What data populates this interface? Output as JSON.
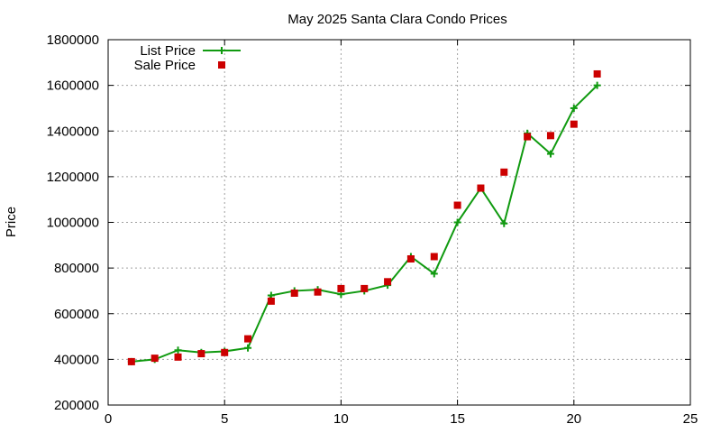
{
  "chart_data": {
    "type": "line",
    "title": "May 2025 Santa Clara Condo Prices",
    "xlabel": "",
    "ylabel": "Price",
    "xlim": [
      0,
      25
    ],
    "ylim": [
      200000,
      1800000
    ],
    "x_ticks": [
      "0",
      "5",
      "10",
      "15",
      "20",
      "25"
    ],
    "y_ticks": [
      "200000",
      "400000",
      "600000",
      "800000",
      "1000000",
      "1200000",
      "1400000",
      "1600000",
      "1800000"
    ],
    "grid": true,
    "legend_position": "top-left",
    "series": [
      {
        "name": "List Price",
        "style": "line-with-plus-markers",
        "color": "#109a10",
        "x": [
          1,
          2,
          3,
          4,
          5,
          6,
          7,
          8,
          9,
          10,
          11,
          12,
          13,
          14,
          15,
          16,
          17,
          18,
          19,
          20,
          21
        ],
        "values": [
          390000,
          400000,
          440000,
          430000,
          435000,
          450000,
          680000,
          700000,
          705000,
          685000,
          700000,
          725000,
          850000,
          775000,
          1000000,
          1150000,
          995000,
          1390000,
          1300000,
          1500000,
          1600000
        ]
      },
      {
        "name": "Sale Price",
        "style": "square-markers",
        "color": "#cc0000",
        "x": [
          1,
          2,
          3,
          4,
          5,
          6,
          7,
          8,
          9,
          10,
          11,
          12,
          13,
          14,
          15,
          16,
          17,
          18,
          19,
          20,
          21
        ],
        "values": [
          390000,
          405000,
          410000,
          425000,
          430000,
          490000,
          655000,
          690000,
          695000,
          710000,
          710000,
          740000,
          840000,
          850000,
          1075000,
          1150000,
          1220000,
          1375000,
          1380000,
          1430000,
          1650000
        ]
      }
    ]
  }
}
